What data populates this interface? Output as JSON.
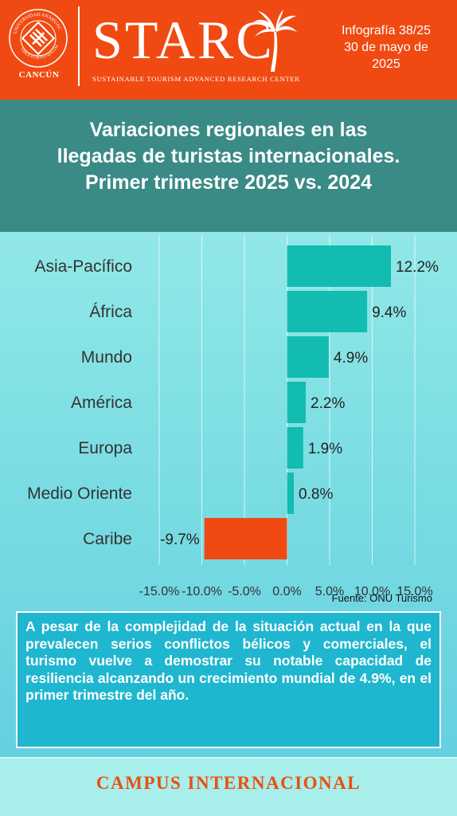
{
  "header": {
    "logo": "STARC",
    "tagline": "SUSTAINABLE TOURISM ADVANCED RESEARCH CENTER",
    "seal_text": "UNIVERSIDAD ANÁHUAC · VINCE IN BONO MALUM",
    "campus": "CANCÚN",
    "info_line1": "Infografía 38/25",
    "info_line2": "30 de mayo de",
    "info_line3": "2025",
    "brand_color": "#f04a12"
  },
  "title": {
    "line1": "Variaciones regionales en las",
    "line2": "llegadas de turistas internacionales.",
    "line3": "Primer trimestre 2025 vs. 2024"
  },
  "chart_data": {
    "type": "bar",
    "orientation": "horizontal",
    "categories": [
      "Asia-Pacífico",
      "África",
      "Mundo",
      "América",
      "Europa",
      "Medio Oriente",
      "Caribe"
    ],
    "values": [
      12.2,
      9.4,
      4.9,
      2.2,
      1.9,
      0.8,
      -9.7
    ],
    "data_labels": [
      "12.2%",
      "9.4%",
      "4.9%",
      "2.2%",
      "1.9%",
      "0.8%",
      "-9.7%"
    ],
    "xlim": [
      -15,
      15
    ],
    "ticks": [
      "-15.0%",
      "-10.0%",
      "-5.0%",
      "0.0%",
      "5.0%",
      "10.0%",
      "15.0%"
    ],
    "tick_values": [
      -15,
      -10,
      -5,
      0,
      5,
      10,
      15
    ],
    "positive_color": "#12bcb0",
    "negative_color": "#f04a12",
    "grid": true
  },
  "source": "Fuente: ONU Turismo",
  "note": "A pesar de la complejidad de la situación actual en la que prevalecen serios conflictos bélicos y comerciales, el turismo vuelve a demostrar su notable capacidad de resiliencia alcanzando un crecimiento mundial de 4.9%, en el primer trimestre del año.",
  "footer": "CAMPUS INTERNACIONAL"
}
